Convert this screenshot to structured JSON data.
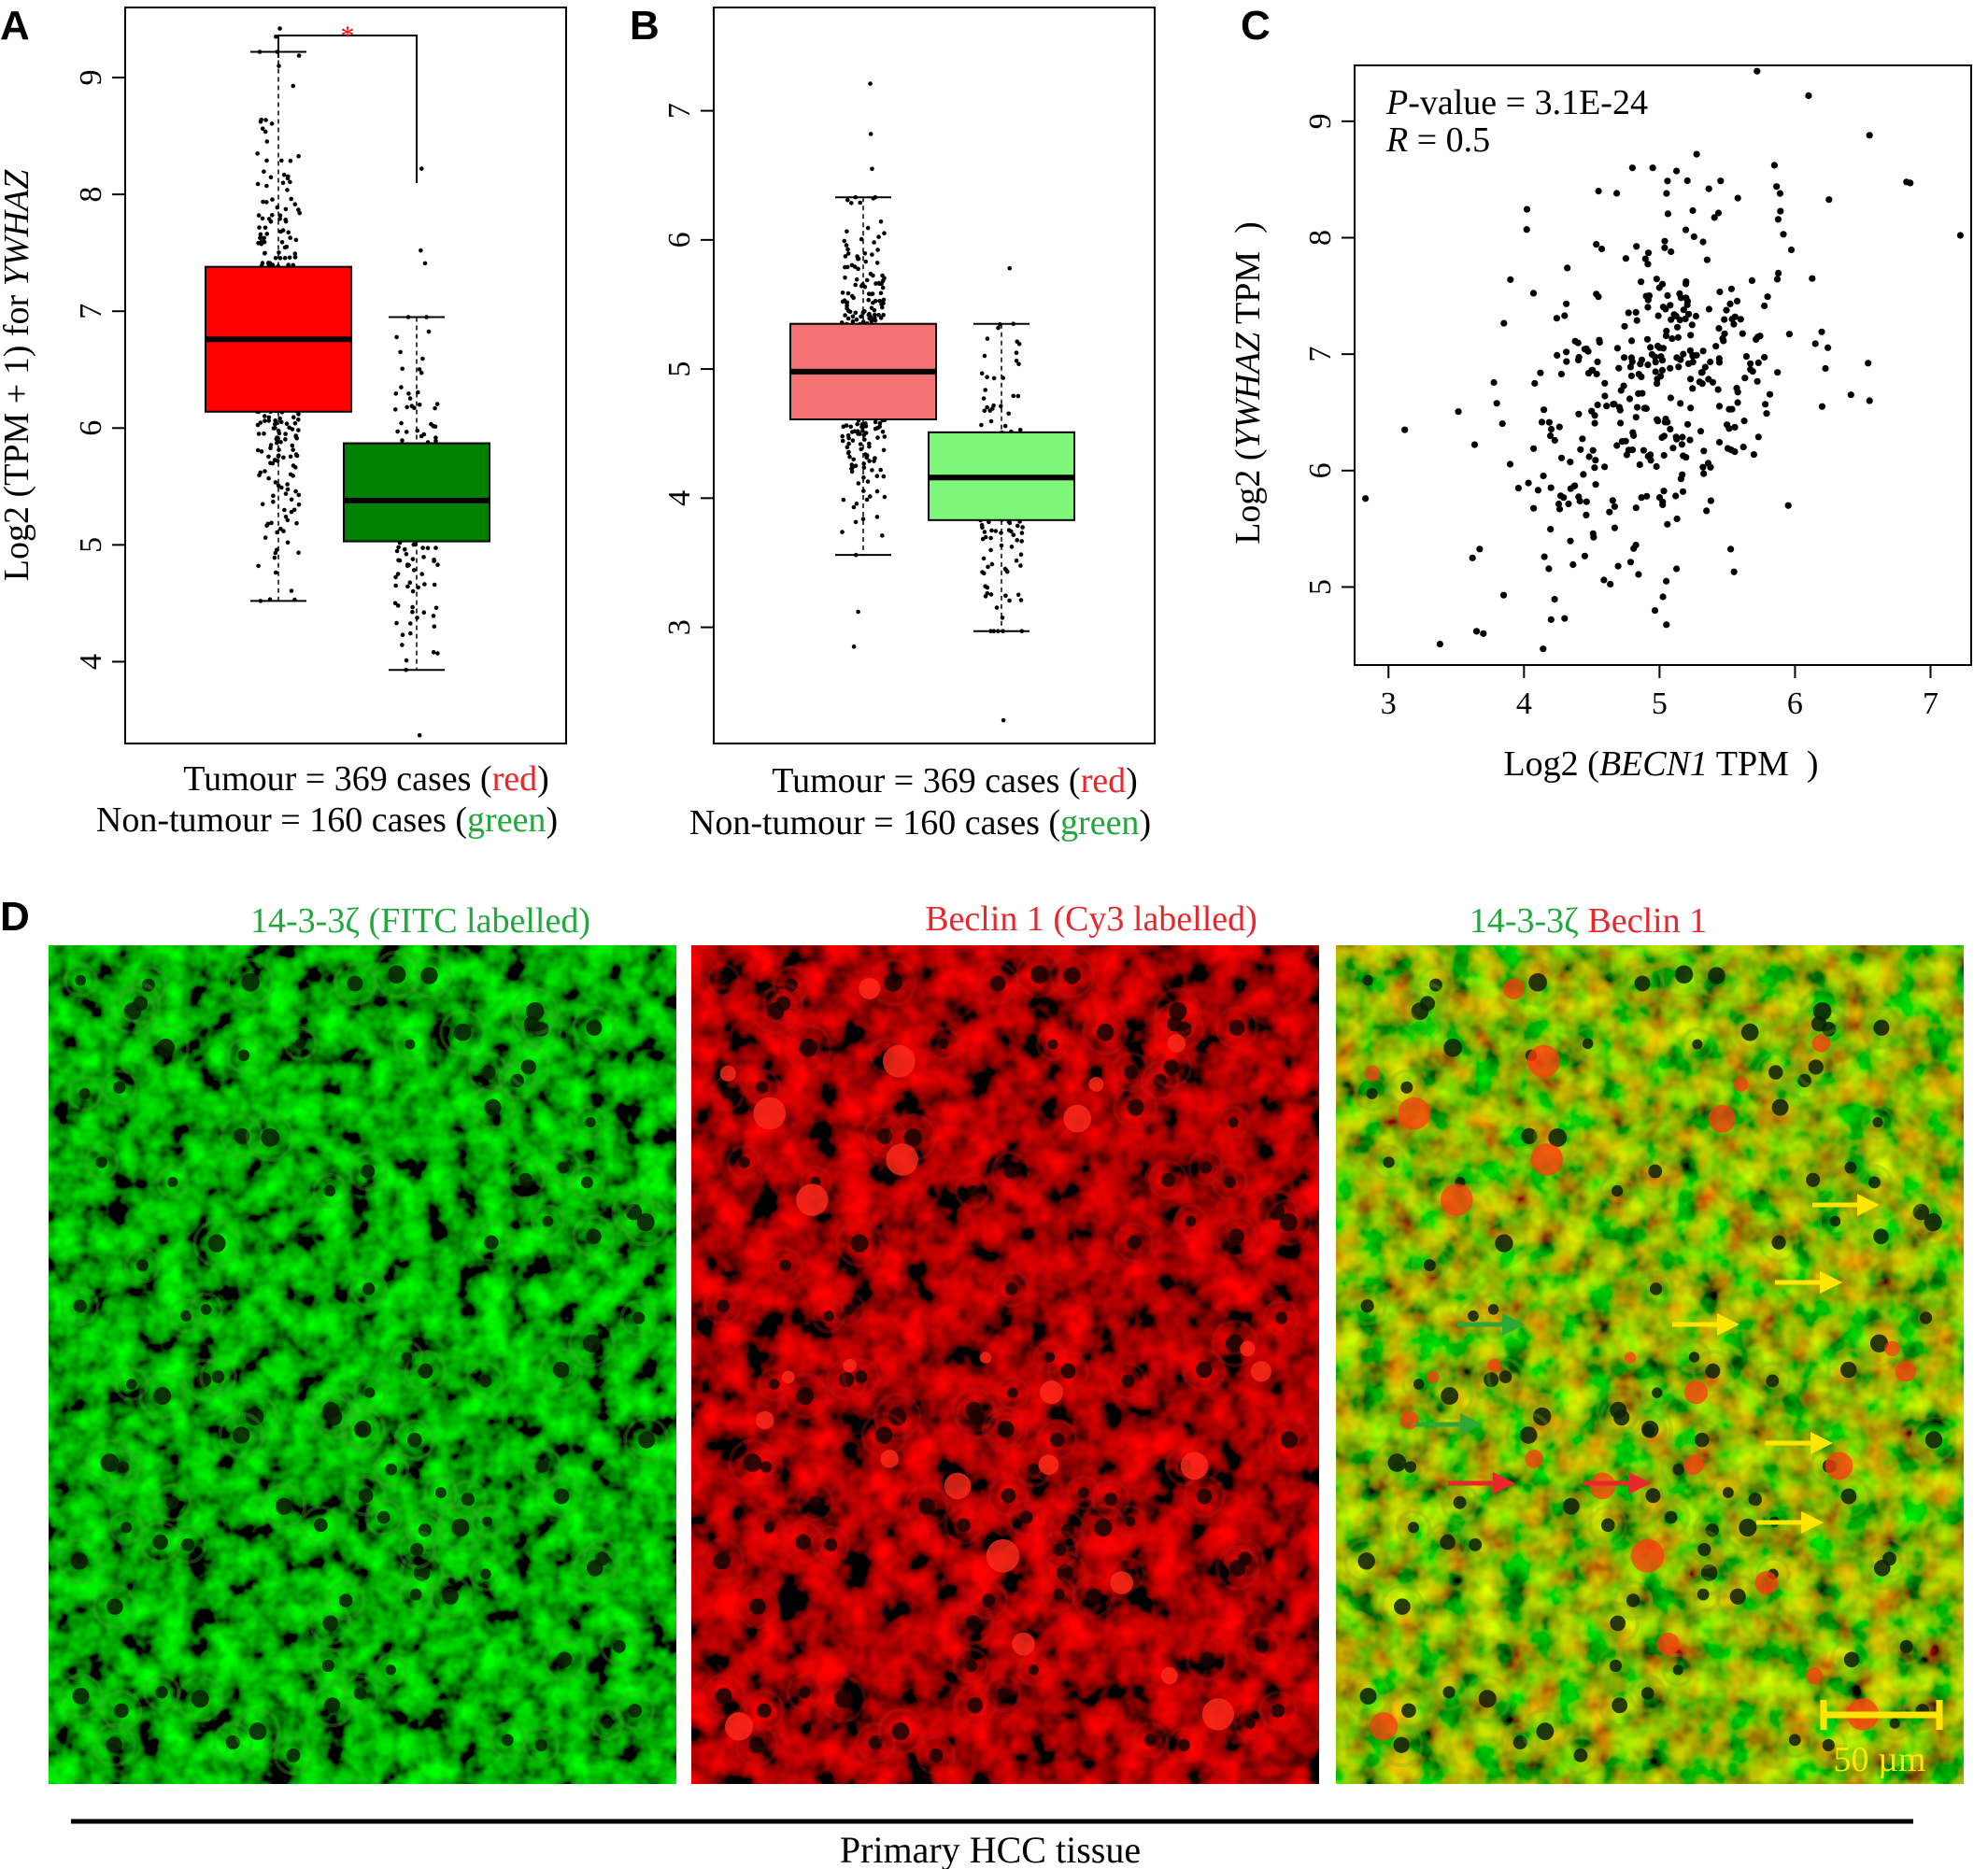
{
  "panel_labels": [
    "A",
    "B",
    "C",
    "D"
  ],
  "colors": {
    "red": "#ff0000",
    "green": "#008000",
    "light_red": "#f47274",
    "light_green": "#7ef77a",
    "caption_red": "#e8262b",
    "caption_green": "#1fa83c",
    "arrow_yellow": "#ffe600",
    "arrow_green": "#2ea836",
    "arrow_red": "#e8262b"
  },
  "chart_data": [
    {
      "id": "A",
      "type": "box",
      "ylabel_prefix": "Log2 (TPM + 1) for ",
      "ylabel_gene": "YWHAZ",
      "ylim": [
        3.3,
        9.6
      ],
      "yticks": [
        4,
        5,
        6,
        7,
        8,
        9
      ],
      "significance": "*",
      "groups": [
        {
          "name": "Tumour",
          "color": "#ff0000",
          "n": 369,
          "min": 4.52,
          "q1": 6.14,
          "median": 6.76,
          "q3": 7.38,
          "max": 9.22,
          "outliers": [
            9.42,
            9.35
          ]
        },
        {
          "name": "Non-tumour",
          "color": "#008000",
          "n": 160,
          "min": 3.93,
          "q1": 5.03,
          "median": 5.38,
          "q3": 5.87,
          "max": 6.95,
          "outliers": [
            8.22,
            7.52,
            7.41,
            3.37
          ]
        }
      ],
      "caption": [
        {
          "pre": "Tumour = 369 cases (",
          "word": "red",
          "post": ")"
        },
        {
          "pre": "Non-tumour = 160 cases (",
          "word": "green",
          "post": ")"
        }
      ]
    },
    {
      "id": "B",
      "type": "box",
      "ylim": [
        2.1,
        7.8
      ],
      "yticks": [
        3,
        4,
        5,
        6,
        7
      ],
      "groups": [
        {
          "name": "Tumour",
          "color": "#f47274",
          "n": 369,
          "min": 3.56,
          "q1": 4.61,
          "median": 4.98,
          "q3": 5.35,
          "max": 6.33,
          "outliers": [
            7.21,
            6.82,
            6.55,
            2.85,
            3.12
          ]
        },
        {
          "name": "Non-tumour",
          "color": "#7ef77a",
          "n": 160,
          "min": 2.97,
          "q1": 3.83,
          "median": 4.16,
          "q3": 4.51,
          "max": 5.35,
          "outliers": [
            5.78,
            2.28
          ]
        }
      ],
      "caption": [
        {
          "pre": "Tumour = 369 cases (",
          "word": "red",
          "post": ")"
        },
        {
          "pre": "Non-tumour = 160 cases (",
          "word": "green",
          "post": ")"
        }
      ]
    },
    {
      "id": "C",
      "type": "scatter",
      "xlabel_prefix": "Log2 (",
      "xlabel_gene": "BECN1",
      "xlabel_suffix": "  TPM  )",
      "ylabel_prefix": "Log2 (",
      "ylabel_gene": "YWHAZ",
      "ylabel_suffix": "  TPM  )",
      "xlim": [
        2.75,
        7.3
      ],
      "ylim": [
        4.33,
        9.48
      ],
      "xticks": [
        3,
        4,
        5,
        6,
        7
      ],
      "yticks": [
        5,
        6,
        7,
        8,
        9
      ],
      "stats": {
        "p_label": "P",
        "p_text": "-value = 3.1E-24",
        "r_label": "R",
        "r_text": " = 0.5"
      },
      "highlight_points": [
        [
          2.83,
          5.76
        ],
        [
          3.12,
          6.35
        ],
        [
          3.38,
          4.51
        ],
        [
          3.62,
          5.25
        ],
        [
          3.65,
          4.62
        ],
        [
          3.7,
          4.6
        ],
        [
          3.85,
          4.93
        ],
        [
          3.9,
          7.64
        ],
        [
          4.02,
          8.07
        ],
        [
          4.2,
          4.72
        ],
        [
          4.3,
          4.73
        ],
        [
          4.55,
          8.4
        ],
        [
          4.8,
          8.6
        ],
        [
          4.95,
          8.6
        ],
        [
          5.05,
          5.05
        ],
        [
          5.55,
          5.13
        ],
        [
          5.72,
          9.43
        ],
        [
          6.1,
          9.22
        ],
        [
          6.55,
          8.88
        ],
        [
          6.85,
          8.47
        ],
        [
          7.22,
          8.02
        ],
        [
          6.55,
          6.6
        ],
        [
          6.2,
          6.55
        ],
        [
          5.95,
          5.7
        ]
      ]
    }
  ],
  "panel_d": {
    "titles": [
      {
        "text": "14-3-3ζ (FITC labelled)",
        "color": "#1fa83c"
      },
      {
        "text": "Beclin 1 (Cy3 labelled)",
        "color": "#e8262b"
      }
    ],
    "merge_title_green": "14-3-3ζ",
    "merge_title_red": "Beclin 1",
    "scalebar_label": "50 µm",
    "bottom_caption": "Primary HCC tissue"
  }
}
